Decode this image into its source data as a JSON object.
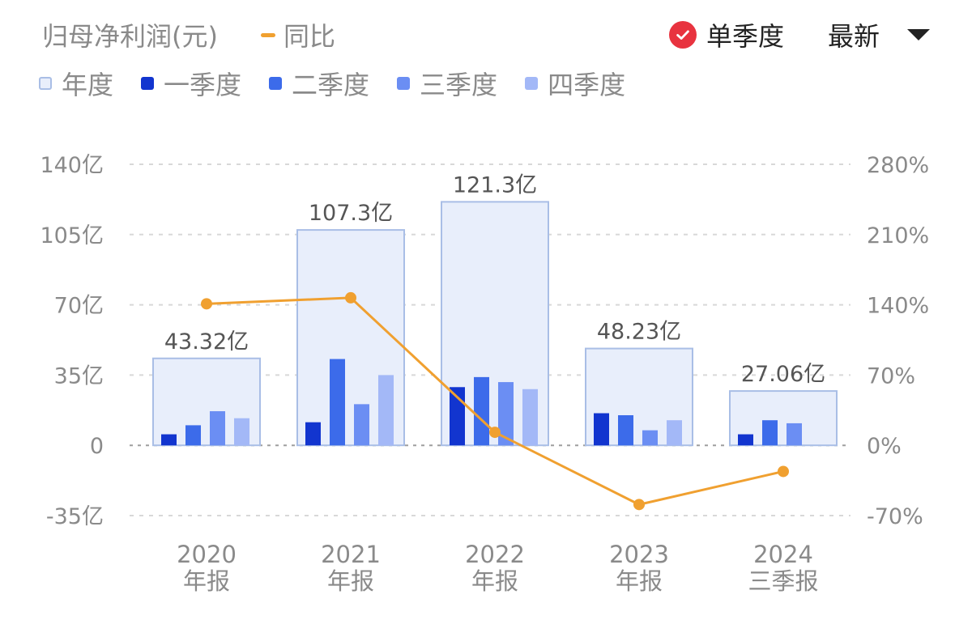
{
  "header": {
    "title": "归母净利润(元)",
    "yoy_legend": "同比",
    "single_quarter_label": "单季度",
    "latest_label": "最新"
  },
  "legend": [
    {
      "label": "年度",
      "color": "#E8EEFB",
      "border": "#A9BEE6"
    },
    {
      "label": "一季度",
      "color": "#1235CF"
    },
    {
      "label": "二季度",
      "color": "#3C6BEA"
    },
    {
      "label": "三季度",
      "color": "#6B8EF3"
    },
    {
      "label": "四季度",
      "color": "#A3B8F7"
    }
  ],
  "colors": {
    "line": "#F0A030",
    "check": "#E8333F",
    "grid": "#D8D8D8",
    "zero_line": "#9E9E9E"
  },
  "chart_data": {
    "type": "bar",
    "title": "归母净利润(元)",
    "categories": [
      {
        "year": "2020",
        "period": "年报"
      },
      {
        "year": "2021",
        "period": "年报"
      },
      {
        "year": "2022",
        "period": "年报"
      },
      {
        "year": "2023",
        "period": "年报"
      },
      {
        "year": "2024",
        "period": "三季报"
      }
    ],
    "annual": {
      "values": [
        43.32,
        107.3,
        121.3,
        48.23,
        27.06
      ],
      "labels": [
        "43.32亿",
        "107.3亿",
        "121.3亿",
        "48.23亿",
        "27.06亿"
      ]
    },
    "quarterly": {
      "q1": [
        5.5,
        11.5,
        29,
        16,
        5.5
      ],
      "q2": [
        10,
        43,
        34,
        15,
        12.5
      ],
      "q3": [
        17,
        20.5,
        31.5,
        7.5,
        11
      ],
      "q4": [
        13.5,
        35,
        28,
        12.5,
        null
      ]
    },
    "yoy": [
      141,
      147,
      13,
      -59,
      -26
    ],
    "y_left": {
      "min": -35,
      "max": 140,
      "ticks": [
        140,
        105,
        70,
        35,
        0,
        -35
      ],
      "labels": [
        "140亿",
        "105亿",
        "70亿",
        "35亿",
        "0",
        "-35亿"
      ]
    },
    "y_right": {
      "min": -70,
      "max": 280,
      "ticks": [
        280,
        210,
        140,
        70,
        0,
        -70
      ],
      "labels": [
        "280%",
        "210%",
        "140%",
        "70%",
        "0%",
        "-70%"
      ]
    },
    "grid": true
  }
}
